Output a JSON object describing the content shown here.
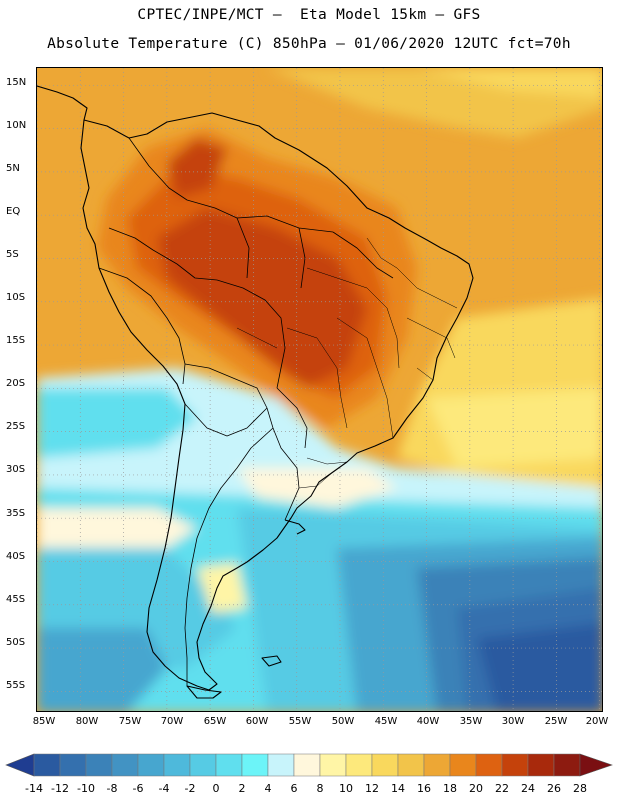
{
  "header": {
    "line1": "CPTEC/INPE/MCT –  Eta Model 15km – GFS",
    "line2": "Absolute Temperature (C) 850hPa – 01/06/2020 12UTC fct=70h"
  },
  "map": {
    "lat_labels": [
      "15N",
      "10N",
      "5N",
      "EQ",
      "5S",
      "10S",
      "15S",
      "20S",
      "25S",
      "30S",
      "35S",
      "40S",
      "45S",
      "50S",
      "55S"
    ],
    "lat_values": [
      15,
      10,
      5,
      0,
      -5,
      -10,
      -15,
      -20,
      -25,
      -30,
      -35,
      -40,
      -45,
      -50,
      -55
    ],
    "lon_labels": [
      "85W",
      "80W",
      "75W",
      "70W",
      "65W",
      "60W",
      "55W",
      "50W",
      "45W",
      "40W",
      "35W",
      "30W",
      "25W",
      "20W"
    ],
    "lon_values": [
      -85,
      -80,
      -75,
      -70,
      -65,
      -60,
      -55,
      -50,
      -45,
      -40,
      -35,
      -30,
      -25,
      -20
    ],
    "extent": {
      "lon_min": -85,
      "lon_max": -19.5,
      "lat_min": -57.5,
      "lat_max": 17
    },
    "gridlines": true
  },
  "colorbar": {
    "labels": [
      "-14",
      "-12",
      "-10",
      "-8",
      "-6",
      "-4",
      "-2",
      "0",
      "2",
      "4",
      "6",
      "8",
      "10",
      "12",
      "14",
      "16",
      "18",
      "20",
      "22",
      "24",
      "26",
      "28"
    ],
    "low_arrow_color": "#1f3d91",
    "high_arrow_color": "#7a0f12",
    "colors": [
      "#21408f",
      "#2a5aa0",
      "#3470ae",
      "#3b82b8",
      "#4293c3",
      "#47a6cf",
      "#4eb9db",
      "#56cbe4",
      "#60dfee",
      "#6cf4f8",
      "#c8f4fb",
      "#fff7dc",
      "#fff5a6",
      "#fde97c",
      "#f9d85d",
      "#f2c44a",
      "#eda735",
      "#e9861c",
      "#de6211",
      "#c5420b",
      "#a8290c",
      "#8d1b10",
      "#7a0f12"
    ]
  },
  "chart_data": {
    "type": "heatmap",
    "title": "Absolute Temperature (C) 850hPa – 01/06/2020 12UTC fct=70h",
    "units": "C",
    "colorbar_levels": [
      -14,
      -12,
      -10,
      -8,
      -6,
      -4,
      -2,
      0,
      2,
      4,
      6,
      8,
      10,
      12,
      14,
      16,
      18,
      20,
      22,
      24,
      26,
      28
    ],
    "regions": [
      {
        "area": "Central Brazil / Amazon interior",
        "value": 24
      },
      {
        "area": "Northern South America / Caribbean",
        "value": 20
      },
      {
        "area": "Tropical Atlantic",
        "value": 18
      },
      {
        "area": "Central Argentina",
        "value": 8
      },
      {
        "area": "Southern Argentina / Patagonia",
        "value": 4
      },
      {
        "area": "South Atlantic (40S-55S, 20W-40W)",
        "value": -8
      }
    ]
  }
}
